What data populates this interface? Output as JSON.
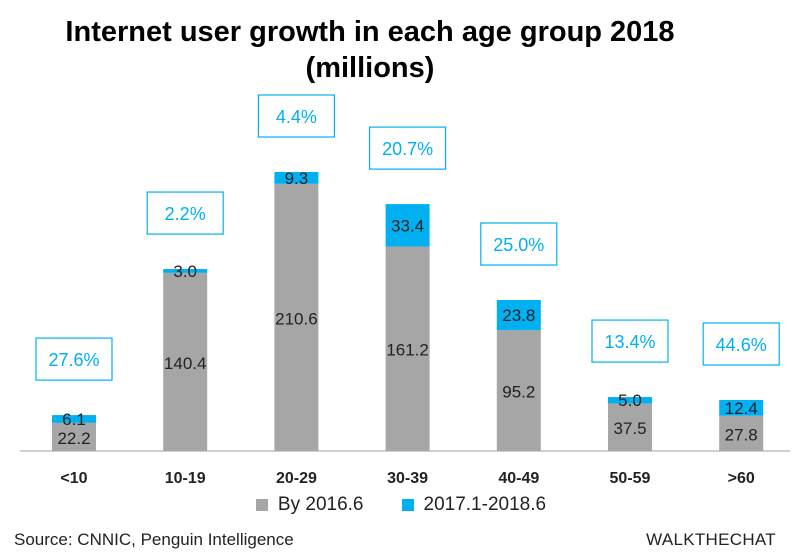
{
  "chart_data": {
    "type": "bar",
    "stacked": true,
    "title": "Internet user growth in each age group 2018",
    "subtitle": "(millions)",
    "categories": [
      "<10",
      "10-19",
      "20-29",
      "30-39",
      "40-49",
      "50-59",
      ">60"
    ],
    "series": [
      {
        "name": "By 2016.6",
        "values": [
          22.2,
          140.4,
          210.6,
          161.2,
          95.2,
          37.5,
          27.8
        ]
      },
      {
        "name": "2017.1-2018.6",
        "values": [
          6.1,
          3.0,
          9.3,
          33.4,
          23.8,
          5.0,
          12.4
        ]
      }
    ],
    "growth_labels": [
      "27.6%",
      "2.2%",
      "4.4%",
      "20.7%",
      "25.0%",
      "13.4%",
      "44.6%"
    ],
    "ylim": [
      0,
      250
    ],
    "grid": false,
    "legend_position": "bottom",
    "colors": {
      "base": "#a6a6a6",
      "growth": "#00b0f0",
      "growth_box": "#00b0f0",
      "axis": "#bfbfbf"
    }
  },
  "footer": {
    "source": "Source: CNNIC, Penguin Intelligence",
    "brand": "WALKTHECHAT"
  }
}
